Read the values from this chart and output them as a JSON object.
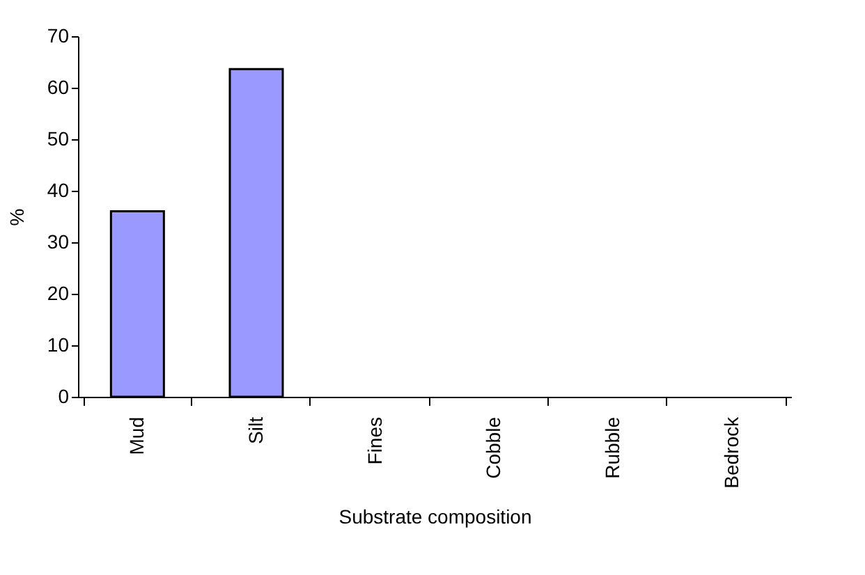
{
  "chart_data": {
    "type": "bar",
    "xlabel": "Substrate composition",
    "ylabel": "%",
    "categories": [
      "Mud",
      "Silt",
      "Fines",
      "Cobble",
      "Rubble",
      "Bedrock"
    ],
    "values": [
      36,
      63.6,
      0,
      0,
      0,
      0
    ],
    "color": "#9999ff",
    "ylim": [
      0,
      70
    ],
    "yticks": [
      0,
      10,
      20,
      30,
      40,
      50,
      60,
      70
    ],
    "grid": false
  }
}
